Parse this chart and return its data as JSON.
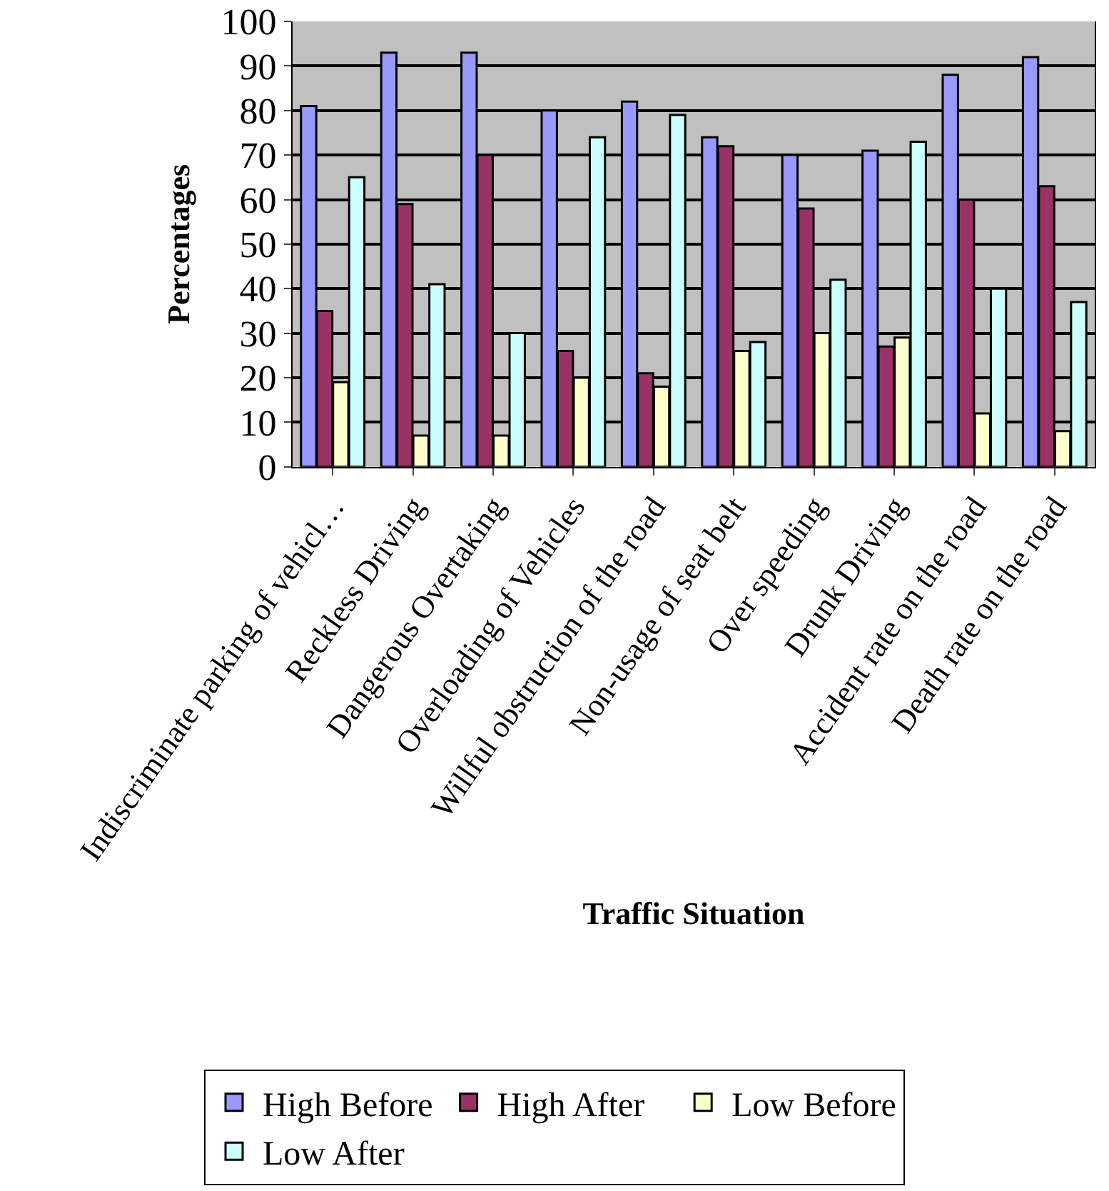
{
  "chart_data": {
    "type": "bar",
    "xlabel": "Traffic Situation",
    "ylabel": "Percentages",
    "categories": [
      "Indiscriminate parking of vehicl…",
      "Reckless Driving",
      "Dangerous Overtaking",
      "Overloading of Vehicles",
      "Willful obstruction of the road",
      "Non-usage of seat belt",
      "Over speeding",
      "Drunk Driving",
      "Accident rate on the road",
      "Death rate on the road"
    ],
    "series": [
      {
        "name": "High Before",
        "color": "#9999ff",
        "values": [
          81,
          93,
          93,
          80,
          82,
          74,
          70,
          71,
          88,
          92
        ]
      },
      {
        "name": "High After",
        "color": "#993366",
        "values": [
          35,
          59,
          70,
          26,
          21,
          72,
          58,
          27,
          60,
          63
        ]
      },
      {
        "name": "Low Before",
        "color": "#ffffcc",
        "values": [
          19,
          7,
          7,
          20,
          18,
          26,
          30,
          29,
          12,
          8
        ]
      },
      {
        "name": "Low After",
        "color": "#ccffff",
        "values": [
          65,
          41,
          30,
          74,
          79,
          28,
          42,
          73,
          40,
          37
        ]
      }
    ],
    "ylim": [
      0,
      100
    ],
    "yticks": [
      0,
      10,
      20,
      30,
      40,
      50,
      60,
      70,
      80,
      90,
      100
    ],
    "grid": "y",
    "legend": "bottom"
  }
}
